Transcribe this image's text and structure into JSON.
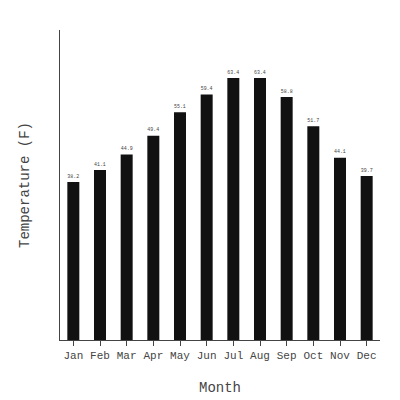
{
  "chart_data": {
    "type": "bar",
    "categories": [
      "Jan",
      "Feb",
      "Mar",
      "Apr",
      "May",
      "Jun",
      "Jul",
      "Aug",
      "Sep",
      "Oct",
      "Nov",
      "Dec"
    ],
    "values": [
      38.2,
      41.1,
      44.9,
      49.4,
      55.1,
      59.4,
      63.4,
      63.4,
      58.8,
      51.7,
      44.1,
      39.7
    ],
    "color": "#111111",
    "xlabel": "Month",
    "ylabel": "Temperature (F)",
    "ylim": [
      0,
      75
    ],
    "data_labels": true,
    "tick_labels": "x",
    "grid": false
  }
}
